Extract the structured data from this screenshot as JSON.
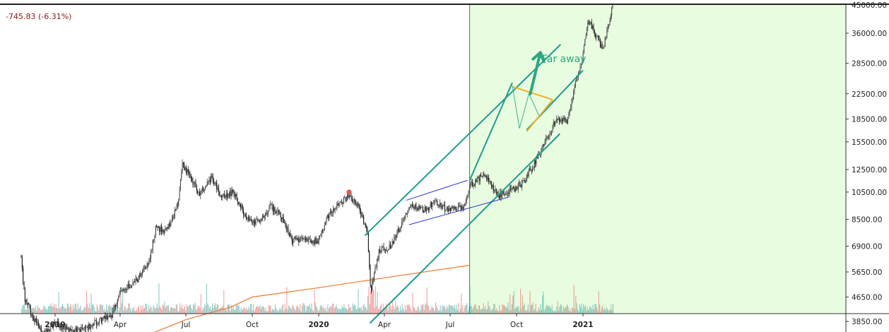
{
  "header": {
    "price_change": "-745.83 (-6.31%)"
  },
  "chart_data": {
    "type": "candlestick",
    "symbol_hint": "",
    "y_axis": {
      "scale": "log",
      "tick_labels": [
        "45000.00",
        "36000.00",
        "28500.00",
        "22500.00",
        "18500.00",
        "15500.00",
        "12500.00",
        "10500.00",
        "8500.00",
        "6900.00",
        "5650.00",
        "4650.00",
        "3850.00"
      ],
      "ylim": [
        3400,
        45000
      ]
    },
    "x_axis": {
      "tick_labels": [
        {
          "label": "2019",
          "bold": true,
          "date": "2019-01-01"
        },
        {
          "label": "Apr",
          "bold": false,
          "date": "2019-04-01"
        },
        {
          "label": "Jul",
          "bold": false,
          "date": "2019-07-01"
        },
        {
          "label": "Oct",
          "bold": false,
          "date": "2019-10-01"
        },
        {
          "label": "2020",
          "bold": true,
          "date": "2020-01-01"
        },
        {
          "label": "Apr",
          "bold": false,
          "date": "2020-04-01"
        },
        {
          "label": "Jul",
          "bold": false,
          "date": "2020-07-01"
        },
        {
          "label": "Oct",
          "bold": false,
          "date": "2020-10-01"
        },
        {
          "label": "2021",
          "bold": true,
          "date": "2021-01-01"
        }
      ],
      "xlim": [
        "2018-11-15",
        "2021-09-30"
      ]
    },
    "price_series": [
      [
        "2018-11-15",
        6400
      ],
      [
        "2018-11-20",
        4600
      ],
      [
        "2018-12-01",
        4000
      ],
      [
        "2018-12-15",
        3500
      ],
      [
        "2019-01-01",
        3800
      ],
      [
        "2019-01-20",
        3600
      ],
      [
        "2019-02-10",
        3600
      ],
      [
        "2019-03-01",
        3850
      ],
      [
        "2019-03-20",
        4000
      ],
      [
        "2019-04-02",
        4900
      ],
      [
        "2019-04-25",
        5300
      ],
      [
        "2019-05-10",
        6000
      ],
      [
        "2019-05-20",
        7900
      ],
      [
        "2019-06-05",
        7800
      ],
      [
        "2019-06-20",
        9500
      ],
      [
        "2019-06-26",
        12900
      ],
      [
        "2019-07-10",
        11500
      ],
      [
        "2019-07-20",
        10400
      ],
      [
        "2019-08-06",
        11800
      ],
      [
        "2019-08-20",
        10100
      ],
      [
        "2019-09-05",
        10500
      ],
      [
        "2019-09-25",
        8400
      ],
      [
        "2019-10-10",
        8300
      ],
      [
        "2019-10-26",
        9400
      ],
      [
        "2019-11-10",
        8800
      ],
      [
        "2019-11-25",
        7200
      ],
      [
        "2019-12-10",
        7300
      ],
      [
        "2019-12-31",
        7200
      ],
      [
        "2020-01-15",
        8800
      ],
      [
        "2020-02-12",
        10300
      ],
      [
        "2020-02-25",
        9300
      ],
      [
        "2020-03-08",
        7900
      ],
      [
        "2020-03-13",
        4900
      ],
      [
        "2020-03-25",
        6700
      ],
      [
        "2020-04-10",
        6900
      ],
      [
        "2020-04-30",
        8700
      ],
      [
        "2020-05-10",
        9500
      ],
      [
        "2020-05-25",
        9100
      ],
      [
        "2020-06-10",
        9700
      ],
      [
        "2020-06-30",
        9150
      ],
      [
        "2020-07-20",
        9300
      ],
      [
        "2020-07-28",
        11000
      ],
      [
        "2020-08-17",
        12000
      ],
      [
        "2020-09-05",
        10200
      ],
      [
        "2020-09-25",
        10700
      ],
      [
        "2020-10-10",
        11300
      ],
      [
        "2020-10-25",
        13000
      ],
      [
        "2020-11-10",
        15500
      ],
      [
        "2020-11-25",
        18500
      ],
      [
        "2020-12-10",
        18200
      ],
      [
        "2020-12-20",
        23500
      ],
      [
        "2020-12-31",
        29000
      ],
      [
        "2021-01-08",
        40000
      ],
      [
        "2021-01-20",
        35000
      ],
      [
        "2021-01-28",
        31500
      ],
      [
        "2021-02-05",
        38000
      ],
      [
        "2021-02-12",
        47000
      ]
    ],
    "moving_average": [
      [
        "2019-05-01",
        3400
      ],
      [
        "2019-07-01",
        3900
      ],
      [
        "2019-09-01",
        4300
      ],
      [
        "2019-10-01",
        4650
      ],
      [
        "2020-01-01",
        5000
      ],
      [
        "2020-04-01",
        5400
      ],
      [
        "2020-07-28",
        5950
      ]
    ],
    "volume": {
      "color_up": "#26a69a",
      "color_down": "#ef5350"
    },
    "highlight_region": {
      "from": "2020-07-28",
      "color": "#e8fde0",
      "border": "#3a8f3a"
    },
    "drawings": {
      "channel_lines": [
        {
          "from": [
            "2020-03-05",
            7500
          ],
          "to": [
            "2020-12-01",
            33000
          ],
          "color": "#1a9e8f"
        },
        {
          "from": [
            "2020-03-12",
            3800
          ],
          "to": [
            "2020-11-30",
            16500
          ],
          "color": "#1a9e8f"
        },
        {
          "from": [
            "2020-07-28",
            11500
          ],
          "to": [
            "2020-09-25",
            24500
          ],
          "color": "#1a9e8f"
        },
        {
          "from": [
            "2020-10-15",
            17000
          ],
          "to": [
            "2021-01-01",
            27000
          ],
          "color": "#1a9e8f"
        }
      ],
      "flag_lines": [
        {
          "from": [
            "2020-05-01",
            9850
          ],
          "to": [
            "2020-07-25",
            11500
          ],
          "color": "#2a35d6"
        },
        {
          "from": [
            "2020-05-05",
            8150
          ],
          "to": [
            "2020-09-20",
            10100
          ],
          "color": "#2a35d6"
        }
      ],
      "pennant": {
        "lines": [
          {
            "from": [
              "2020-09-25",
              23800
            ],
            "to": [
              "2020-11-20",
              21500
            ]
          },
          {
            "from": [
              "2020-10-15",
              16800
            ],
            "to": [
              "2020-11-20",
              21500
            ]
          }
        ],
        "color": "#f2b01e"
      },
      "zigzag": [
        [
          "2020-09-25",
          24000
        ],
        [
          "2020-10-05",
          17200
        ],
        [
          "2020-10-18",
          22500
        ],
        [
          "2020-11-01",
          19000
        ]
      ],
      "arrow": {
        "from": [
          "2020-10-20",
          22500
        ],
        "to": [
          "2020-11-03",
          31000
        ],
        "color": "#2aa77e"
      },
      "marker": {
        "at": [
          "2020-02-12",
          10500
        ],
        "color": "#e05555"
      }
    },
    "annotation": {
      "text": "Far away"
    }
  },
  "colors": {
    "candle_up": "#4a4a4a",
    "candle_down": "#1a1a1a",
    "ma": "#f2772a",
    "axis_line": "#333333",
    "channel": "#1a9e8f"
  }
}
